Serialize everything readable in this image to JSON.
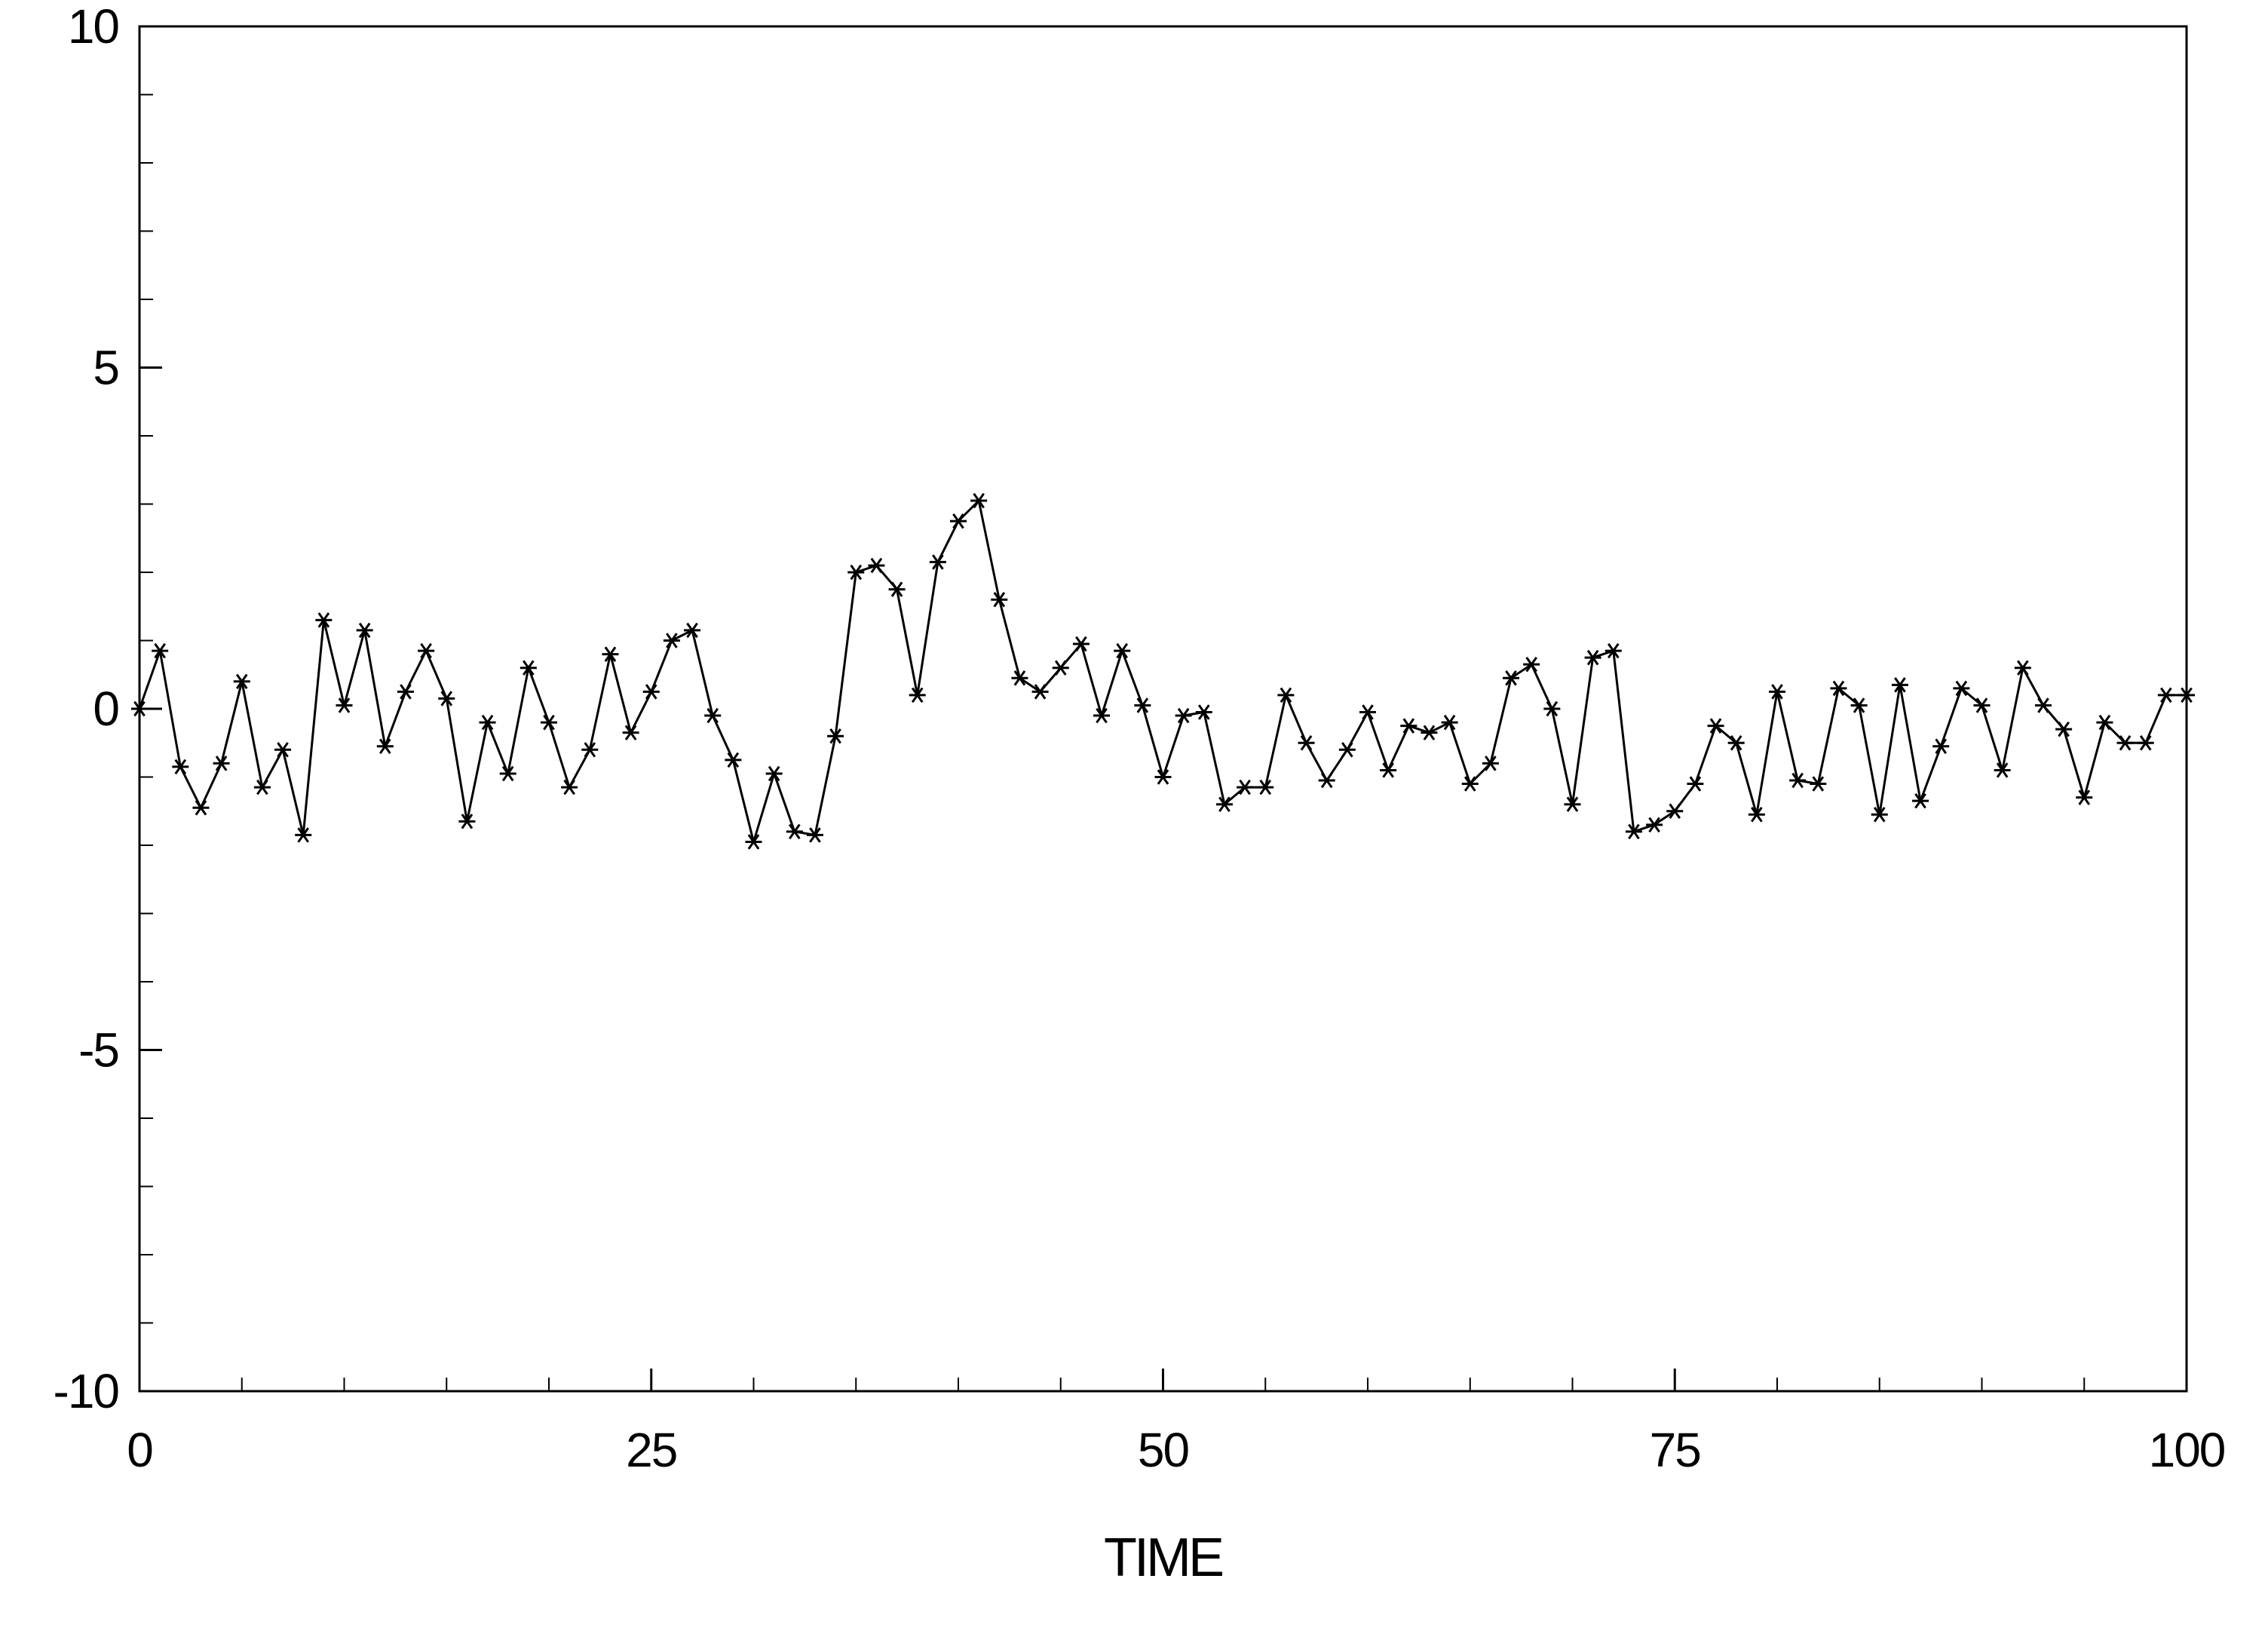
{
  "chart_data": {
    "type": "line",
    "title": "",
    "xlabel": "TIME",
    "ylabel": "",
    "xlim": [
      0,
      100
    ],
    "ylim": [
      -10,
      10
    ],
    "x_ticks": [
      0,
      25,
      50,
      75,
      100
    ],
    "x_tick_labels": [
      "0",
      "25",
      "50",
      "75",
      "100"
    ],
    "y_ticks": [
      -10,
      -5,
      0,
      5,
      10
    ],
    "y_tick_labels": [
      "-10",
      "-5",
      "0",
      "5",
      "10"
    ],
    "x_minor_step": 5,
    "y_minor_step": 1,
    "grid": false,
    "legend": "none",
    "marker": "asterisk",
    "line_color": "#000000",
    "series": [
      {
        "x": [
          0,
          1,
          2,
          3,
          4,
          5,
          6,
          7,
          8,
          9,
          10,
          11,
          12,
          13,
          14,
          15,
          16,
          17,
          18,
          19,
          20,
          21,
          22,
          23,
          24,
          25,
          26,
          27,
          28,
          29,
          30,
          31,
          32,
          33,
          34,
          35,
          36,
          37,
          38,
          39,
          40,
          41,
          42,
          43,
          44,
          45,
          46,
          47,
          48,
          49,
          50,
          51,
          52,
          53,
          54,
          55,
          56,
          57,
          58,
          59,
          60,
          61,
          62,
          63,
          64,
          65,
          66,
          67,
          68,
          69,
          70,
          71,
          72,
          73,
          74,
          75,
          76,
          77,
          78,
          79,
          80,
          81,
          82,
          83,
          84,
          85,
          86,
          87,
          88,
          89,
          90,
          91,
          92,
          93,
          94,
          95,
          96,
          97,
          98,
          99,
          100
        ],
        "values": [
          0.0,
          0.85,
          -0.85,
          -1.45,
          -0.8,
          0.4,
          -1.15,
          -0.6,
          -1.85,
          1.3,
          0.05,
          1.15,
          -0.55,
          0.25,
          0.85,
          0.15,
          -1.65,
          -0.2,
          -0.95,
          0.6,
          -0.2,
          -1.15,
          -0.6,
          0.8,
          -0.35,
          0.25,
          1.0,
          1.15,
          -0.1,
          -0.75,
          -1.95,
          -0.95,
          -1.8,
          -1.85,
          -0.4,
          2.0,
          2.1,
          1.75,
          0.2,
          2.15,
          2.75,
          3.05,
          1.6,
          0.45,
          0.25,
          0.6,
          0.95,
          -0.1,
          0.85,
          0.05,
          -1.0,
          -0.1,
          -0.05,
          -1.4,
          -1.15,
          -1.15,
          0.2,
          -0.5,
          -1.05,
          -0.6,
          -0.05,
          -0.9,
          -0.25,
          -0.35,
          -0.2,
          -1.1,
          -0.8,
          0.45,
          0.65,
          0.0,
          -1.4,
          0.75,
          0.85,
          -1.8,
          -1.7,
          -1.5,
          -1.1,
          -0.25,
          -0.5,
          -1.55,
          0.25,
          -1.05,
          -1.1,
          0.3,
          0.05,
          -1.55,
          0.35,
          -1.35,
          -0.55,
          0.3,
          0.05,
          -0.9,
          0.6,
          0.05,
          -0.3,
          -1.3,
          -0.2,
          -0.5,
          -0.5,
          0.2,
          0.2
        ]
      }
    ]
  }
}
